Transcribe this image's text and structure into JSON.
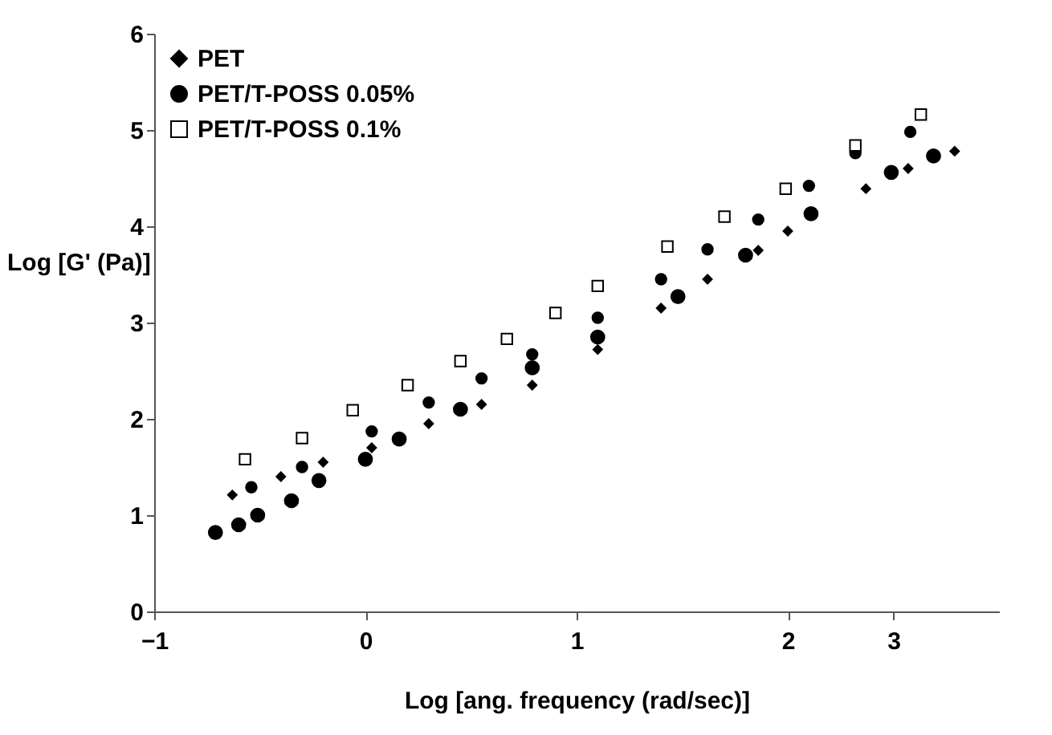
{
  "chart_data": {
    "type": "scatter",
    "xlabel": "Log [ang. frequency (rad/sec)]",
    "ylabel": "Log\n[G' (Pa)]",
    "xlim": [
      -1,
      3
    ],
    "xticks": [
      -1,
      0,
      1,
      2,
      {
        "value": 2.5,
        "label": "3"
      }
    ],
    "ylim": [
      0,
      6
    ],
    "yticks": [
      0,
      1,
      2,
      3,
      4,
      5,
      6
    ],
    "grid": false,
    "legend": "top left",
    "series": [
      {
        "name": "PET",
        "color": "#000000",
        "marker": "diamond",
        "x": [
          -0.63,
          -0.4,
          -0.2,
          0.03,
          0.3,
          0.55,
          0.79,
          1.1,
          1.4,
          1.62,
          1.86,
          2.0,
          2.37,
          2.57,
          2.79
        ],
        "values": [
          1.21,
          1.4,
          1.55,
          1.7,
          1.95,
          2.15,
          2.35,
          2.72,
          3.15,
          3.45,
          3.75,
          3.95,
          4.39,
          4.6,
          4.78
        ]
      },
      {
        "name": "PET/T-POSS 0.05%",
        "color": "#000000",
        "marker": "circle",
        "x": [
          -0.54,
          -0.3,
          0.03,
          0.3,
          0.55,
          0.79,
          1.1,
          1.4,
          1.62,
          1.86,
          2.1,
          2.32,
          2.58
        ],
        "values": [
          1.29,
          1.5,
          1.87,
          2.17,
          2.42,
          2.67,
          3.05,
          3.45,
          3.76,
          4.07,
          4.42,
          4.76,
          4.98
        ]
      },
      {
        "name": "PET/T-POSS 0.1%",
        "color": "#000000",
        "marker": "square",
        "x": [
          -0.57,
          -0.3,
          -0.06,
          0.2,
          0.45,
          0.67,
          0.9,
          1.1,
          1.43,
          1.7,
          1.99,
          2.32,
          2.63
        ],
        "values": [
          1.58,
          1.8,
          2.09,
          2.35,
          2.6,
          2.83,
          3.1,
          3.38,
          3.79,
          4.1,
          4.39,
          4.84,
          5.16
        ]
      },
      {
        "color": "#000000",
        "marker": "circle",
        "x": [
          -0.71,
          -0.6,
          -0.51,
          -0.35,
          -0.22,
          0.0,
          0.16,
          0.45,
          0.79,
          1.1,
          1.48,
          1.8,
          2.11,
          2.49,
          2.69
        ],
        "values": [
          0.82,
          0.9,
          1.0,
          1.15,
          1.36,
          1.58,
          1.79,
          2.1,
          2.53,
          2.85,
          3.27,
          3.7,
          4.13,
          4.56,
          4.73
        ]
      }
    ]
  }
}
